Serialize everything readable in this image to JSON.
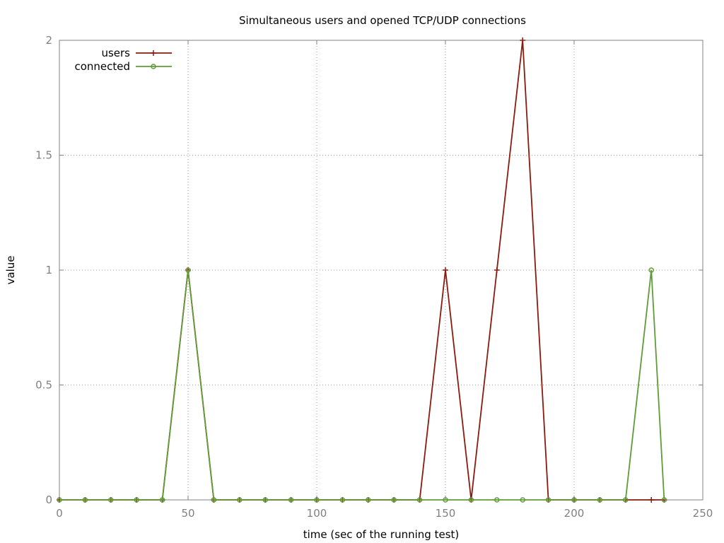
{
  "chart_data": {
    "type": "line",
    "title": "Simultaneous users and opened TCP/UDP connections",
    "xlabel": "time (sec of the running test)",
    "ylabel": "value",
    "xlim": [
      0,
      250
    ],
    "ylim": [
      0,
      2
    ],
    "xticks": [
      0,
      50,
      100,
      150,
      200,
      250
    ],
    "yticks": [
      0,
      0.5,
      1,
      1.5,
      2
    ],
    "xtick_labels": [
      "0",
      "50",
      "100",
      "150",
      "200",
      "250"
    ],
    "ytick_labels": [
      "0",
      "0.5",
      "1",
      "1.5",
      "2"
    ],
    "grid": true,
    "legend_position": "top-left",
    "series": [
      {
        "name": "users",
        "color": "#8b1a0e",
        "marker": "plus",
        "x": [
          0,
          10,
          20,
          30,
          40,
          50,
          60,
          70,
          80,
          90,
          100,
          110,
          120,
          130,
          140,
          150,
          160,
          170,
          180,
          190,
          200,
          210,
          220,
          230,
          235
        ],
        "y": [
          0,
          0,
          0,
          0,
          0,
          1,
          0,
          0,
          0,
          0,
          0,
          0,
          0,
          0,
          0,
          1,
          0,
          1,
          2,
          0,
          0,
          0,
          0,
          0,
          0
        ]
      },
      {
        "name": "connected",
        "color": "#5e9c36",
        "marker": "circle",
        "x": [
          0,
          10,
          20,
          30,
          40,
          50,
          60,
          70,
          80,
          90,
          100,
          110,
          120,
          130,
          140,
          150,
          160,
          170,
          180,
          190,
          200,
          210,
          220,
          230,
          235
        ],
        "y": [
          0,
          0,
          0,
          0,
          0,
          1,
          0,
          0,
          0,
          0,
          0,
          0,
          0,
          0,
          0,
          0,
          0,
          0,
          0,
          0,
          0,
          0,
          0,
          1,
          0
        ]
      }
    ]
  }
}
